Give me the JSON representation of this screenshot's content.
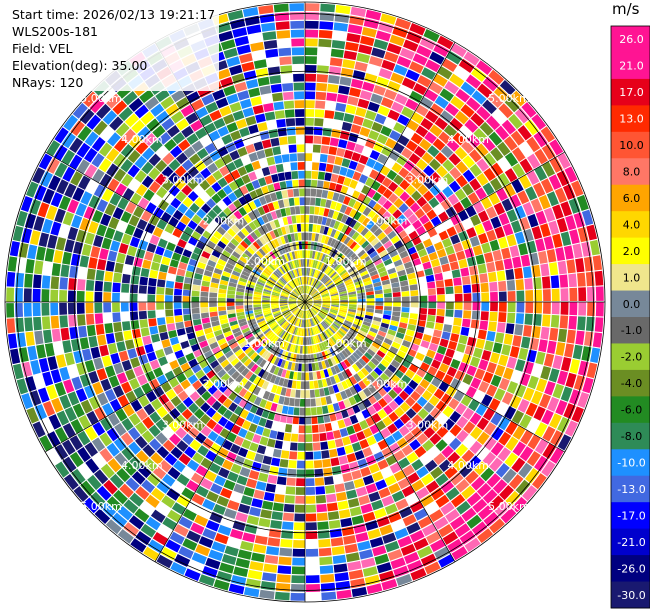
{
  "info": {
    "start_time": "Start time: 2026/02/13 19:21:17",
    "site": "WLS200s-181",
    "field": "Field: VEL",
    "elevation": "Elevation(deg): 35.00",
    "nrays": "NRays: 120"
  },
  "chart_data": {
    "type": "heatmap",
    "projection": "polar (PPI)",
    "field": "VEL",
    "units": "m/s",
    "elevation_deg": 35.0,
    "n_rays": 120,
    "range_rings_km": [
      1.0,
      2.0,
      3.0,
      4.0,
      5.0
    ],
    "ring_labels": [
      "1.00km",
      "2.00km",
      "3.00km",
      "4.00km",
      "5.00km"
    ],
    "colorbar": {
      "title": "m/s",
      "tick_labels": [
        "26.0",
        "21.0",
        "17.0",
        "13.0",
        "10.0",
        "8.0",
        "6.0",
        "4.0",
        "2.0",
        "1.0",
        "0.0",
        "-1.0",
        "-2.0",
        "-4.0",
        "-6.0",
        "-8.0",
        "-10.0",
        "-13.0",
        "-17.0",
        "-21.0",
        "-26.0",
        "-30.0"
      ],
      "colors": [
        "#ff1493",
        "#ff1493",
        "#e6001a",
        "#ff2a00",
        "#ff5533",
        "#ff7766",
        "#ffa500",
        "#ffd700",
        "#ffff00",
        "#f0e68c",
        "#778899",
        "#696969",
        "#9acd32",
        "#6b8e23",
        "#228b22",
        "#2e8b57",
        "#1e90ff",
        "#4169e1",
        "#0000ff",
        "#0000cd",
        "#000080",
        "#191970"
      ]
    },
    "description_values": "Velocity field: near-zero (grey/yellow) within ~1.5 km, mixed speckled values beyond; dominant positive (pink/red) on east side, negative (blue/green) on west/southwest side."
  }
}
